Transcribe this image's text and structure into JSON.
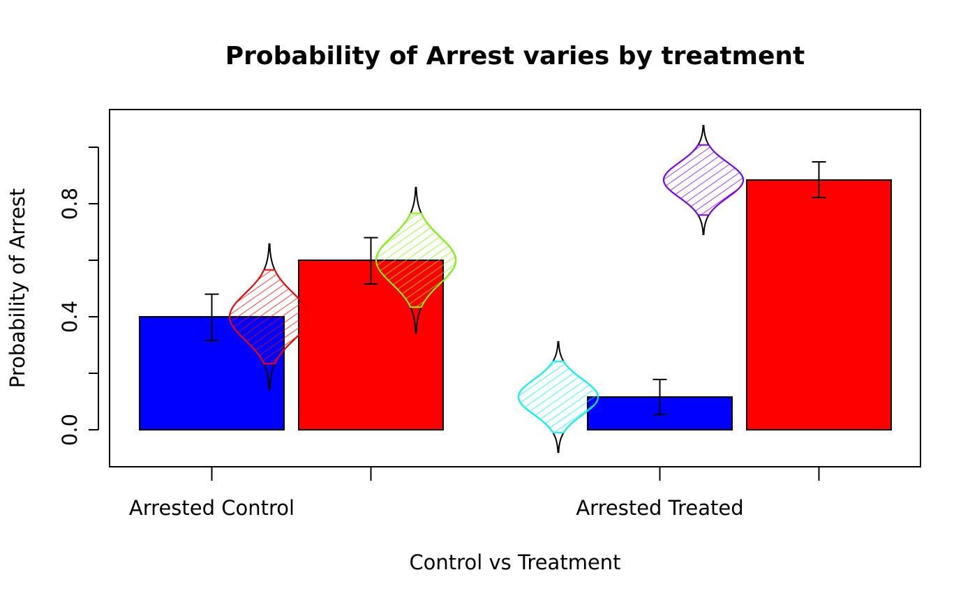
{
  "chart_data": {
    "type": "bar",
    "title": "Probability of Arrest varies by treatment",
    "xlabel": "Control vs Treatment",
    "ylabel": "Probability of Arrest",
    "ylim": [
      -0.13,
      1.13
    ],
    "yticks": [
      0.0,
      0.2,
      0.4,
      0.6,
      0.8,
      1.0
    ],
    "ytick_labels": [
      "0.0",
      "",
      "0.4",
      "",
      "0.8",
      ""
    ],
    "groups": [
      {
        "label": "Arrested Control",
        "bars": [
          {
            "value": 0.4,
            "ci": [
              0.316,
              0.48
            ],
            "color": "#0000ff"
          },
          {
            "value": 0.6,
            "ci": [
              0.516,
              0.68
            ],
            "color": "#ff0000"
          }
        ]
      },
      {
        "label": "Arrested Treated",
        "bars": [
          {
            "value": 0.116,
            "ci": [
              0.054,
              0.178
            ],
            "color": "#0000ff"
          },
          {
            "value": 0.884,
            "ci": [
              0.822,
              0.948
            ],
            "color": "#ff0000"
          }
        ]
      }
    ],
    "violins": [
      {
        "mean": 0.4,
        "sd": 0.083,
        "color": "#ff0000"
      },
      {
        "mean": 0.6,
        "sd": 0.083,
        "color": "#80ff00"
      },
      {
        "mean": 0.116,
        "sd": 0.063,
        "color": "#00ffff"
      },
      {
        "mean": 0.884,
        "sd": 0.062,
        "color": "#8000ff"
      }
    ],
    "grid": false
  }
}
